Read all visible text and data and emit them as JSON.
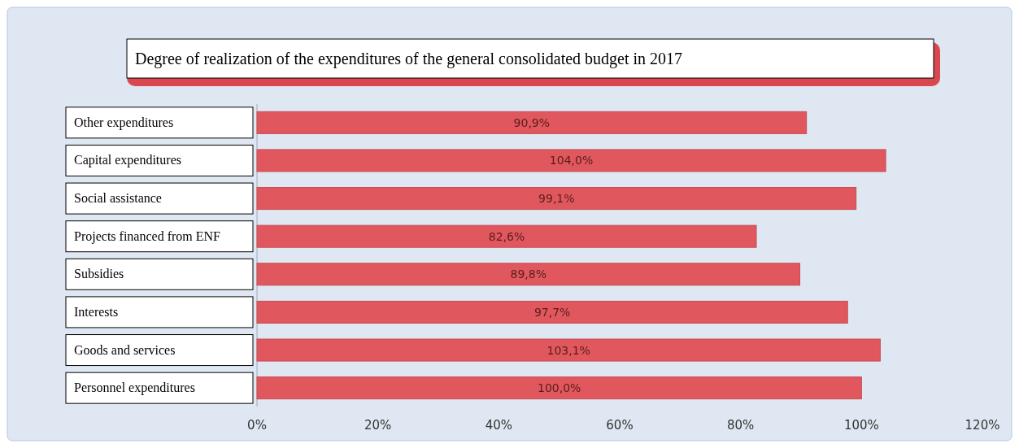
{
  "chart_data": {
    "type": "bar",
    "orientation": "horizontal",
    "title": "Degree of realization of the expenditures of the general consolidated budget in 2017",
    "categories": [
      "Other expenditures",
      "Capital expenditures",
      "Social assistance",
      "Projects financed from ENF",
      "Subsidies",
      "Interests",
      "Goods and services",
      "Personnel expenditures"
    ],
    "values": [
      90.9,
      104.0,
      99.1,
      82.6,
      89.8,
      97.7,
      103.1,
      100.0
    ],
    "value_labels": [
      "90,9%",
      "104,0%",
      "99,1%",
      "82,6%",
      "89,8%",
      "97,7%",
      "103,1%",
      "100,0%"
    ],
    "color": "#e0585e",
    "xlim": [
      0,
      120
    ],
    "xticks": [
      {
        "value": 0,
        "label": "0%"
      },
      {
        "value": 20,
        "label": "20%"
      },
      {
        "value": 40,
        "label": "40%"
      },
      {
        "value": 60,
        "label": "60%"
      },
      {
        "value": 80,
        "label": "80%"
      },
      {
        "value": 100,
        "label": "100%"
      },
      {
        "value": 120,
        "label": "120%"
      }
    ],
    "grid": false
  }
}
